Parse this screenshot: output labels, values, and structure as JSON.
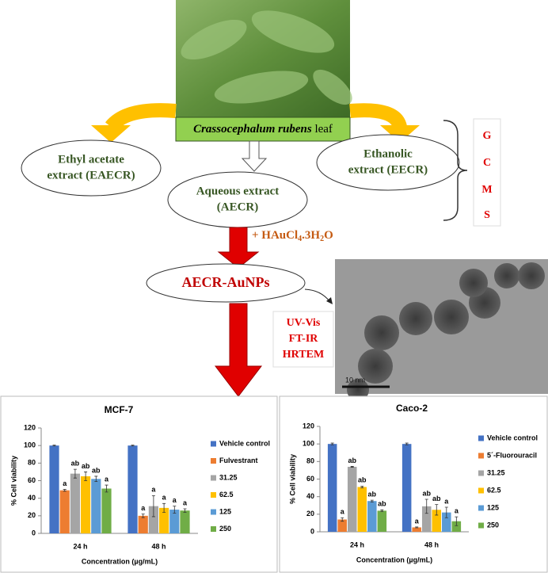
{
  "leaf_label": {
    "species": "Crassocephalum rubens",
    "part": "leaf"
  },
  "extracts": {
    "ethyl_acetate": [
      "Ethyl acetate",
      "extract (EAECR)"
    ],
    "aqueous": [
      "Aqueous extract",
      "(AECR)"
    ],
    "ethanolic": [
      "Ethanolic",
      "extract (EECR)"
    ]
  },
  "gcms": [
    "G",
    "C",
    "M",
    "S"
  ],
  "reagent": [
    "+ HAuCl",
    "4",
    ".3H",
    "2",
    "O"
  ],
  "nanoparticles": "AECR-AuNPs",
  "characterization": [
    "UV-Vis",
    "FT-IR",
    "HRTEM"
  ],
  "tem_scale": "10 nm",
  "chart_data": [
    {
      "type": "bar",
      "title": "MCF-7",
      "y_label": "% Cell viability",
      "x_label": "Concentration (µg/mL)",
      "categories": [
        "24 h",
        "48 h"
      ],
      "ylim": [
        0,
        120
      ],
      "yticks": [
        0,
        20,
        40,
        60,
        80,
        100,
        120
      ],
      "series": [
        {
          "name": "Vehicle control",
          "color": "#4472c4",
          "values": [
            100,
            100
          ],
          "errors": [
            0.5,
            0.5
          ]
        },
        {
          "name": "Fulvestrant",
          "color": "#ed7d31",
          "values": [
            49,
            20
          ],
          "errors": [
            1,
            2
          ],
          "labels": [
            "a",
            "a"
          ]
        },
        {
          "name": "31.25",
          "color": "#a5a5a5",
          "values": [
            68,
            31
          ],
          "errors": [
            5,
            12
          ],
          "labels": [
            "ab",
            "a"
          ]
        },
        {
          "name": "62.5",
          "color": "#ffc000",
          "values": [
            65,
            29
          ],
          "errors": [
            5,
            5
          ],
          "labels": [
            "ab",
            "a"
          ]
        },
        {
          "name": "125",
          "color": "#5b9bd5",
          "values": [
            62,
            27
          ],
          "errors": [
            3,
            4
          ],
          "labels": [
            "ab",
            "a"
          ]
        },
        {
          "name": "250",
          "color": "#70ad47",
          "values": [
            51,
            26
          ],
          "errors": [
            4,
            2
          ],
          "labels": [
            "a",
            "a"
          ]
        }
      ]
    },
    {
      "type": "bar",
      "title": "Caco-2",
      "y_label": "% Cell viability",
      "x_label": "Concentration (µg/mL)",
      "categories": [
        "24 h",
        "48 h"
      ],
      "ylim": [
        0,
        120
      ],
      "yticks": [
        0,
        20,
        40,
        60,
        80,
        100,
        120
      ],
      "series": [
        {
          "name": "Vehicle control",
          "color": "#4472c4",
          "values": [
            100,
            100
          ],
          "errors": [
            1,
            1
          ]
        },
        {
          "name": "5´-Fluorouracil",
          "color": "#ed7d31",
          "values": [
            14,
            5
          ],
          "errors": [
            2,
            0.5
          ],
          "labels": [
            "a",
            "a"
          ]
        },
        {
          "name": "31.25",
          "color": "#a5a5a5",
          "values": [
            74,
            29
          ],
          "errors": [
            0.5,
            8
          ],
          "labels": [
            "ab",
            "ab"
          ]
        },
        {
          "name": "62.5",
          "color": "#ffc000",
          "values": [
            51,
            25
          ],
          "errors": [
            1,
            6
          ],
          "labels": [
            "ab",
            "ab"
          ]
        },
        {
          "name": "125",
          "color": "#5b9bd5",
          "values": [
            35,
            22
          ],
          "errors": [
            1,
            6
          ],
          "labels": [
            "ab",
            "a"
          ]
        },
        {
          "name": "250",
          "color": "#70ad47",
          "values": [
            24,
            12
          ],
          "errors": [
            1,
            5
          ],
          "labels": [
            "ab",
            "a"
          ]
        }
      ]
    }
  ]
}
